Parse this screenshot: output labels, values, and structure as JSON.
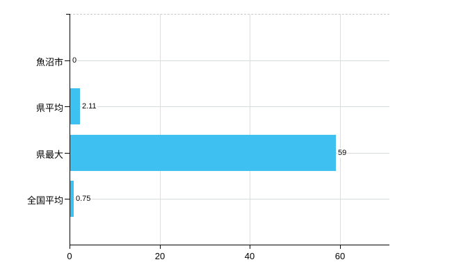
{
  "chart_data": {
    "type": "bar",
    "orientation": "horizontal",
    "title": "",
    "xlabel": "",
    "ylabel": "",
    "categories": [
      "魚沼市",
      "県平均",
      "県最大",
      "全国平均"
    ],
    "values": [
      0,
      2.11,
      59,
      0.75
    ],
    "value_labels": [
      "0",
      "2.11",
      "59",
      "0.75"
    ],
    "x_ticks": [
      0,
      20,
      40,
      60
    ],
    "x_tick_labels": [
      "0",
      "20",
      "40",
      "60"
    ],
    "xlim": [
      0,
      71
    ],
    "grid": true,
    "legend": "none",
    "bar_color": "#3EC1F0"
  },
  "colors": {
    "background": "#FFFFFF",
    "bar": "#3EC1F0",
    "axis": "#000000",
    "vertical_gridline": "#DCDCDC",
    "row_gridline": "#D6DDD6",
    "plot_top_border_dashed": "#C8C8C8",
    "text": "#000000"
  }
}
